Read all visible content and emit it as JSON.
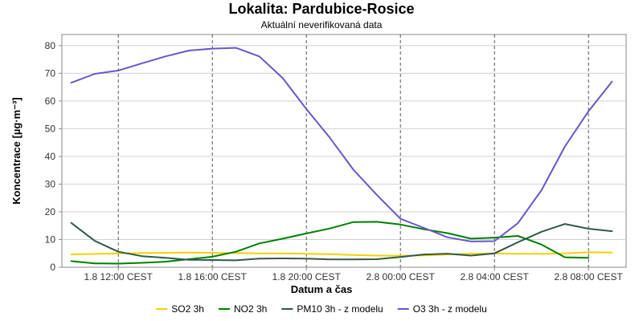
{
  "chart_data": {
    "type": "line",
    "title": "Lokalita: Pardubice-Rosice",
    "subtitle": "Aktuální neverifikovaná data",
    "xlabel": "Datum a čas",
    "ylabel": "Koncentrace [µg·m⁻³]",
    "ylim": [
      0,
      84
    ],
    "yticks": [
      0,
      10,
      20,
      30,
      40,
      50,
      60,
      70,
      80
    ],
    "xlim": [
      9.6,
      33.6
    ],
    "xticks": [
      {
        "x": 12,
        "label": "1.8 12:00 CEST"
      },
      {
        "x": 16,
        "label": "1.8 16:00 CEST"
      },
      {
        "x": 20,
        "label": "1.8 20:00 CEST"
      },
      {
        "x": 24,
        "label": "2.8 00:00 CEST"
      },
      {
        "x": 28,
        "label": "2.8 04:00 CEST"
      },
      {
        "x": 32,
        "label": "2.8 08:00 CEST"
      }
    ],
    "grid": true,
    "legend_position": "bottom",
    "x": [
      10,
      11,
      12,
      13,
      14,
      15,
      16,
      17,
      18,
      19,
      20,
      21,
      22,
      23,
      24,
      25,
      26,
      27,
      28,
      29,
      30,
      31,
      32,
      33
    ],
    "series": [
      {
        "name": "SO2 3h",
        "color": "#f5d000",
        "values": [
          4.6,
          4.8,
          5.0,
          5.1,
          5.2,
          5.3,
          5.2,
          5.1,
          5.0,
          5.0,
          4.9,
          4.7,
          4.4,
          4.2,
          4.1,
          4.3,
          4.6,
          4.9,
          5.0,
          4.9,
          4.8,
          5.0,
          5.4,
          5.3
        ]
      },
      {
        "name": "NO2 3h",
        "color": "#008000",
        "values": [
          2.2,
          1.4,
          1.3,
          1.6,
          2.0,
          2.9,
          3.8,
          5.6,
          8.6,
          10.3,
          12.2,
          14.0,
          16.3,
          16.4,
          15.4,
          13.7,
          12.3,
          10.3,
          10.7,
          11.3,
          8.2,
          3.6,
          3.4,
          null
        ]
      },
      {
        "name": "PM10 3h - z modelu",
        "color": "#2f5a47",
        "values": [
          16.0,
          9.5,
          5.6,
          4.0,
          3.4,
          2.7,
          2.6,
          2.5,
          3.1,
          3.2,
          3.1,
          2.8,
          2.8,
          2.9,
          3.7,
          4.6,
          4.9,
          4.2,
          5.0,
          9.0,
          12.8,
          15.6,
          13.9,
          13.0
        ]
      },
      {
        "name": "O3 3h - z modelu",
        "color": "#6a55cc",
        "values": [
          66.6,
          69.8,
          71.0,
          73.6,
          76.1,
          78.2,
          78.9,
          79.2,
          76.1,
          68.2,
          57.1,
          46.7,
          35.2,
          26.1,
          17.5,
          14.2,
          10.8,
          9.3,
          9.4,
          15.9,
          27.8,
          43.6,
          56.3,
          67.0
        ]
      }
    ]
  }
}
